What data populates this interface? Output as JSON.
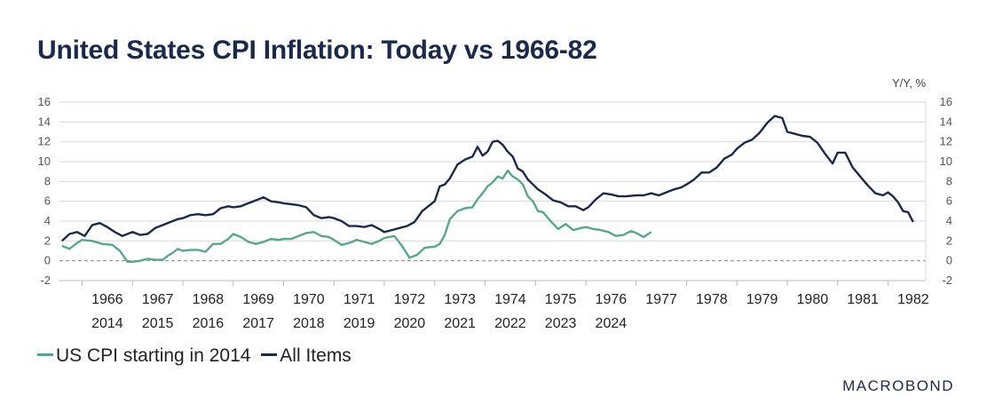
{
  "colors": {
    "all_items": "#1b2a4a",
    "cpi_2014": "#5aa58e",
    "grid": "#d9d9d9",
    "zero": "#888888"
  },
  "chart_data": {
    "type": "line",
    "title": "United States CPI Inflation: Today vs 1966-82",
    "unit_label": "Y/Y, %",
    "ylim": [
      -2,
      16
    ],
    "yticks": [
      -2,
      0,
      2,
      4,
      6,
      8,
      10,
      12,
      14,
      16
    ],
    "grid": true,
    "zero_line": "dashed",
    "legend_position": "bottom-left",
    "x_primary_labels": [
      "1966",
      "1967",
      "1968",
      "1969",
      "1970",
      "1971",
      "1972",
      "1973",
      "1974",
      "1975",
      "1976",
      "1977",
      "1978",
      "1979",
      "1980",
      "1981",
      "1982"
    ],
    "x_secondary_labels": [
      "2014",
      "2015",
      "2016",
      "2017",
      "2018",
      "2019",
      "2020",
      "2021",
      "2022",
      "2023",
      "2024"
    ],
    "xlim": [
      1965.55,
      1982.75
    ],
    "series": [
      {
        "name": "US CPI starting in 2014",
        "color_key": "cpi_2014",
        "x": [
          1965.6,
          1965.75,
          1965.9,
          1966.0,
          1966.2,
          1966.4,
          1966.6,
          1966.75,
          1966.9,
          1967.0,
          1967.15,
          1967.3,
          1967.45,
          1967.6,
          1967.7,
          1967.8,
          1967.9,
          1968.0,
          1968.15,
          1968.3,
          1968.45,
          1968.6,
          1968.75,
          1968.9,
          1969.0,
          1969.15,
          1969.3,
          1969.45,
          1969.6,
          1969.75,
          1969.9,
          1970.0,
          1970.15,
          1970.3,
          1970.45,
          1970.6,
          1970.75,
          1970.9,
          1971.0,
          1971.15,
          1971.3,
          1971.45,
          1971.6,
          1971.75,
          1971.9,
          1972.0,
          1972.2,
          1972.35,
          1972.5,
          1972.65,
          1972.8,
          1972.95,
          1973.0,
          1973.1,
          1973.2,
          1973.3,
          1973.45,
          1973.6,
          1973.75,
          1973.85,
          1973.95,
          1974.05,
          1974.15,
          1974.25,
          1974.35,
          1974.45,
          1974.55,
          1974.65,
          1974.75,
          1974.85,
          1974.95,
          1975.05,
          1975.15,
          1975.3,
          1975.45,
          1975.6,
          1975.75,
          1975.9,
          1976.0,
          1976.15,
          1976.3,
          1976.45,
          1976.6,
          1976.75,
          1976.9,
          1977.0,
          1977.15,
          1977.3
        ],
        "values": [
          1.5,
          1.2,
          1.8,
          2.1,
          2.0,
          1.7,
          1.6,
          1.0,
          -0.1,
          -0.1,
          0.0,
          0.2,
          0.1,
          0.1,
          0.5,
          0.8,
          1.2,
          1.0,
          1.1,
          1.1,
          0.9,
          1.7,
          1.7,
          2.2,
          2.7,
          2.4,
          1.9,
          1.7,
          1.9,
          2.2,
          2.1,
          2.2,
          2.2,
          2.5,
          2.8,
          2.9,
          2.5,
          2.4,
          2.1,
          1.6,
          1.8,
          2.1,
          1.9,
          1.7,
          2.0,
          2.3,
          2.5,
          1.5,
          0.3,
          0.6,
          1.3,
          1.4,
          1.4,
          1.7,
          2.6,
          4.2,
          5.0,
          5.3,
          5.4,
          6.2,
          6.8,
          7.5,
          7.9,
          8.5,
          8.3,
          9.1,
          8.5,
          8.2,
          7.7,
          6.5,
          6.0,
          5.0,
          4.9,
          4.0,
          3.2,
          3.7,
          3.1,
          3.3,
          3.4,
          3.2,
          3.1,
          2.9,
          2.5,
          2.6,
          3.0,
          2.8,
          2.4,
          2.9
        ]
      },
      {
        "name": "All Items",
        "color_key": "all_items",
        "x": [
          1965.6,
          1965.75,
          1965.9,
          1966.05,
          1966.2,
          1966.35,
          1966.5,
          1966.65,
          1966.8,
          1967.0,
          1967.15,
          1967.3,
          1967.45,
          1967.6,
          1967.75,
          1967.9,
          1968.0,
          1968.15,
          1968.3,
          1968.45,
          1968.6,
          1968.75,
          1968.9,
          1969.0,
          1969.15,
          1969.3,
          1969.45,
          1969.6,
          1969.75,
          1969.9,
          1970.0,
          1970.15,
          1970.3,
          1970.45,
          1970.6,
          1970.75,
          1970.9,
          1971.0,
          1971.15,
          1971.3,
          1971.45,
          1971.6,
          1971.75,
          1971.9,
          1972.0,
          1972.15,
          1972.3,
          1972.45,
          1972.6,
          1972.75,
          1972.9,
          1973.0,
          1973.1,
          1973.2,
          1973.3,
          1973.45,
          1973.6,
          1973.75,
          1973.85,
          1973.95,
          1974.05,
          1974.15,
          1974.25,
          1974.35,
          1974.45,
          1974.55,
          1974.65,
          1974.75,
          1974.85,
          1974.95,
          1975.05,
          1975.2,
          1975.35,
          1975.5,
          1975.65,
          1975.8,
          1975.95,
          1976.05,
          1976.2,
          1976.35,
          1976.5,
          1976.65,
          1976.8,
          1977.0,
          1977.15,
          1977.3,
          1977.45,
          1977.6,
          1977.75,
          1977.9,
          1978.0,
          1978.15,
          1978.3,
          1978.45,
          1978.6,
          1978.75,
          1978.9,
          1979.0,
          1979.15,
          1979.3,
          1979.45,
          1979.6,
          1979.75,
          1979.9,
          1980.0,
          1980.15,
          1980.3,
          1980.45,
          1980.6,
          1980.75,
          1980.9,
          1981.0,
          1981.15,
          1981.3,
          1981.45,
          1981.6,
          1981.75,
          1981.9,
          1982.0,
          1982.1,
          1982.2,
          1982.3,
          1982.4,
          1982.5
        ],
        "values": [
          2.0,
          2.7,
          2.9,
          2.5,
          3.6,
          3.8,
          3.4,
          2.9,
          2.5,
          2.9,
          2.6,
          2.7,
          3.3,
          3.6,
          3.9,
          4.2,
          4.3,
          4.6,
          4.7,
          4.6,
          4.7,
          5.3,
          5.5,
          5.4,
          5.5,
          5.8,
          6.1,
          6.4,
          6.0,
          5.9,
          5.8,
          5.7,
          5.6,
          5.4,
          4.6,
          4.3,
          4.4,
          4.3,
          4.0,
          3.5,
          3.5,
          3.4,
          3.6,
          3.2,
          2.9,
          3.1,
          3.3,
          3.5,
          3.9,
          5.0,
          5.6,
          6.0,
          7.5,
          7.7,
          8.3,
          9.7,
          10.2,
          10.5,
          11.5,
          10.6,
          11.0,
          12.0,
          12.1,
          11.7,
          11.0,
          10.5,
          9.3,
          9.0,
          8.2,
          7.7,
          7.2,
          6.7,
          6.1,
          5.9,
          5.5,
          5.5,
          5.1,
          5.4,
          6.2,
          6.8,
          6.7,
          6.5,
          6.5,
          6.6,
          6.6,
          6.8,
          6.6,
          6.9,
          7.2,
          7.4,
          7.7,
          8.2,
          8.9,
          8.9,
          9.4,
          10.3,
          10.7,
          11.3,
          11.9,
          12.2,
          12.9,
          13.9,
          14.6,
          14.4,
          13.0,
          12.8,
          12.6,
          12.5,
          11.9,
          10.8,
          9.8,
          10.9,
          10.9,
          9.4,
          8.5,
          7.6,
          6.8,
          6.6,
          6.9,
          6.5,
          5.9,
          5.0,
          4.9,
          3.9
        ]
      }
    ]
  },
  "legend": {
    "items": [
      {
        "label": "US CPI starting in 2014",
        "color_key": "cpi_2014"
      },
      {
        "label": "All Items",
        "color_key": "all_items"
      }
    ]
  },
  "brand": {
    "logo_text": "MACROBOND"
  }
}
